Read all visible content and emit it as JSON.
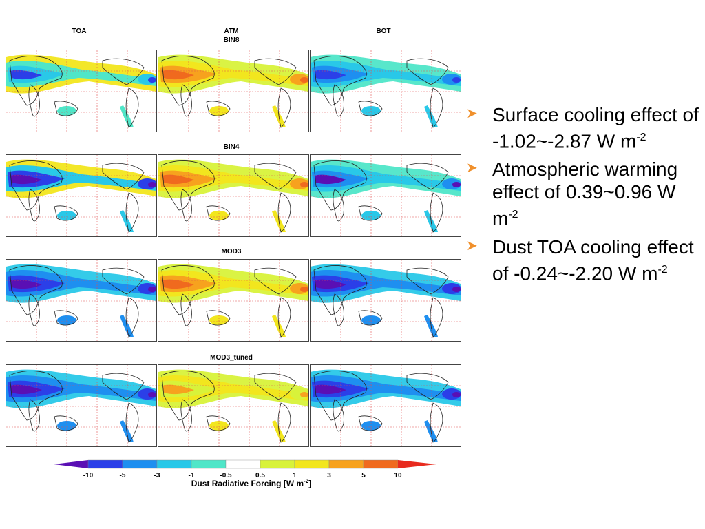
{
  "columns": [
    "TOA",
    "ATM",
    "BOT"
  ],
  "rows": [
    {
      "label": "BIN8",
      "atm_extra_label": "ATM"
    },
    {
      "label": "BIN4"
    },
    {
      "label": "MOD3"
    },
    {
      "label": "MOD3_tuned"
    }
  ],
  "bullets": [
    {
      "text": "Surface cooling effect of -1.02~-2.87 W m",
      "sup": "-2"
    },
    {
      "text": "Atmospheric warming effect of 0.39~0.96 W m",
      "sup": "-2"
    },
    {
      "text": "Dust TOA cooling effect of -0.24~-2.20 W m",
      "sup": "-2"
    }
  ],
  "colorbar": {
    "ticks": [
      "-10",
      "-5",
      "-3",
      "-1",
      "-0.5",
      "0.5",
      "1",
      "3",
      "5",
      "10"
    ],
    "colors": [
      "#5a0fb4",
      "#2b3fe8",
      "#1e8ff0",
      "#29c8e8",
      "#4fe6c8",
      "#ffffff",
      "#d8f23a",
      "#f2e61e",
      "#f7a21e",
      "#f06a1e",
      "#e82a1e"
    ],
    "title_main": "Dust Radiative Forcing [W m",
    "title_sup": "-2",
    "title_end": "]"
  }
}
